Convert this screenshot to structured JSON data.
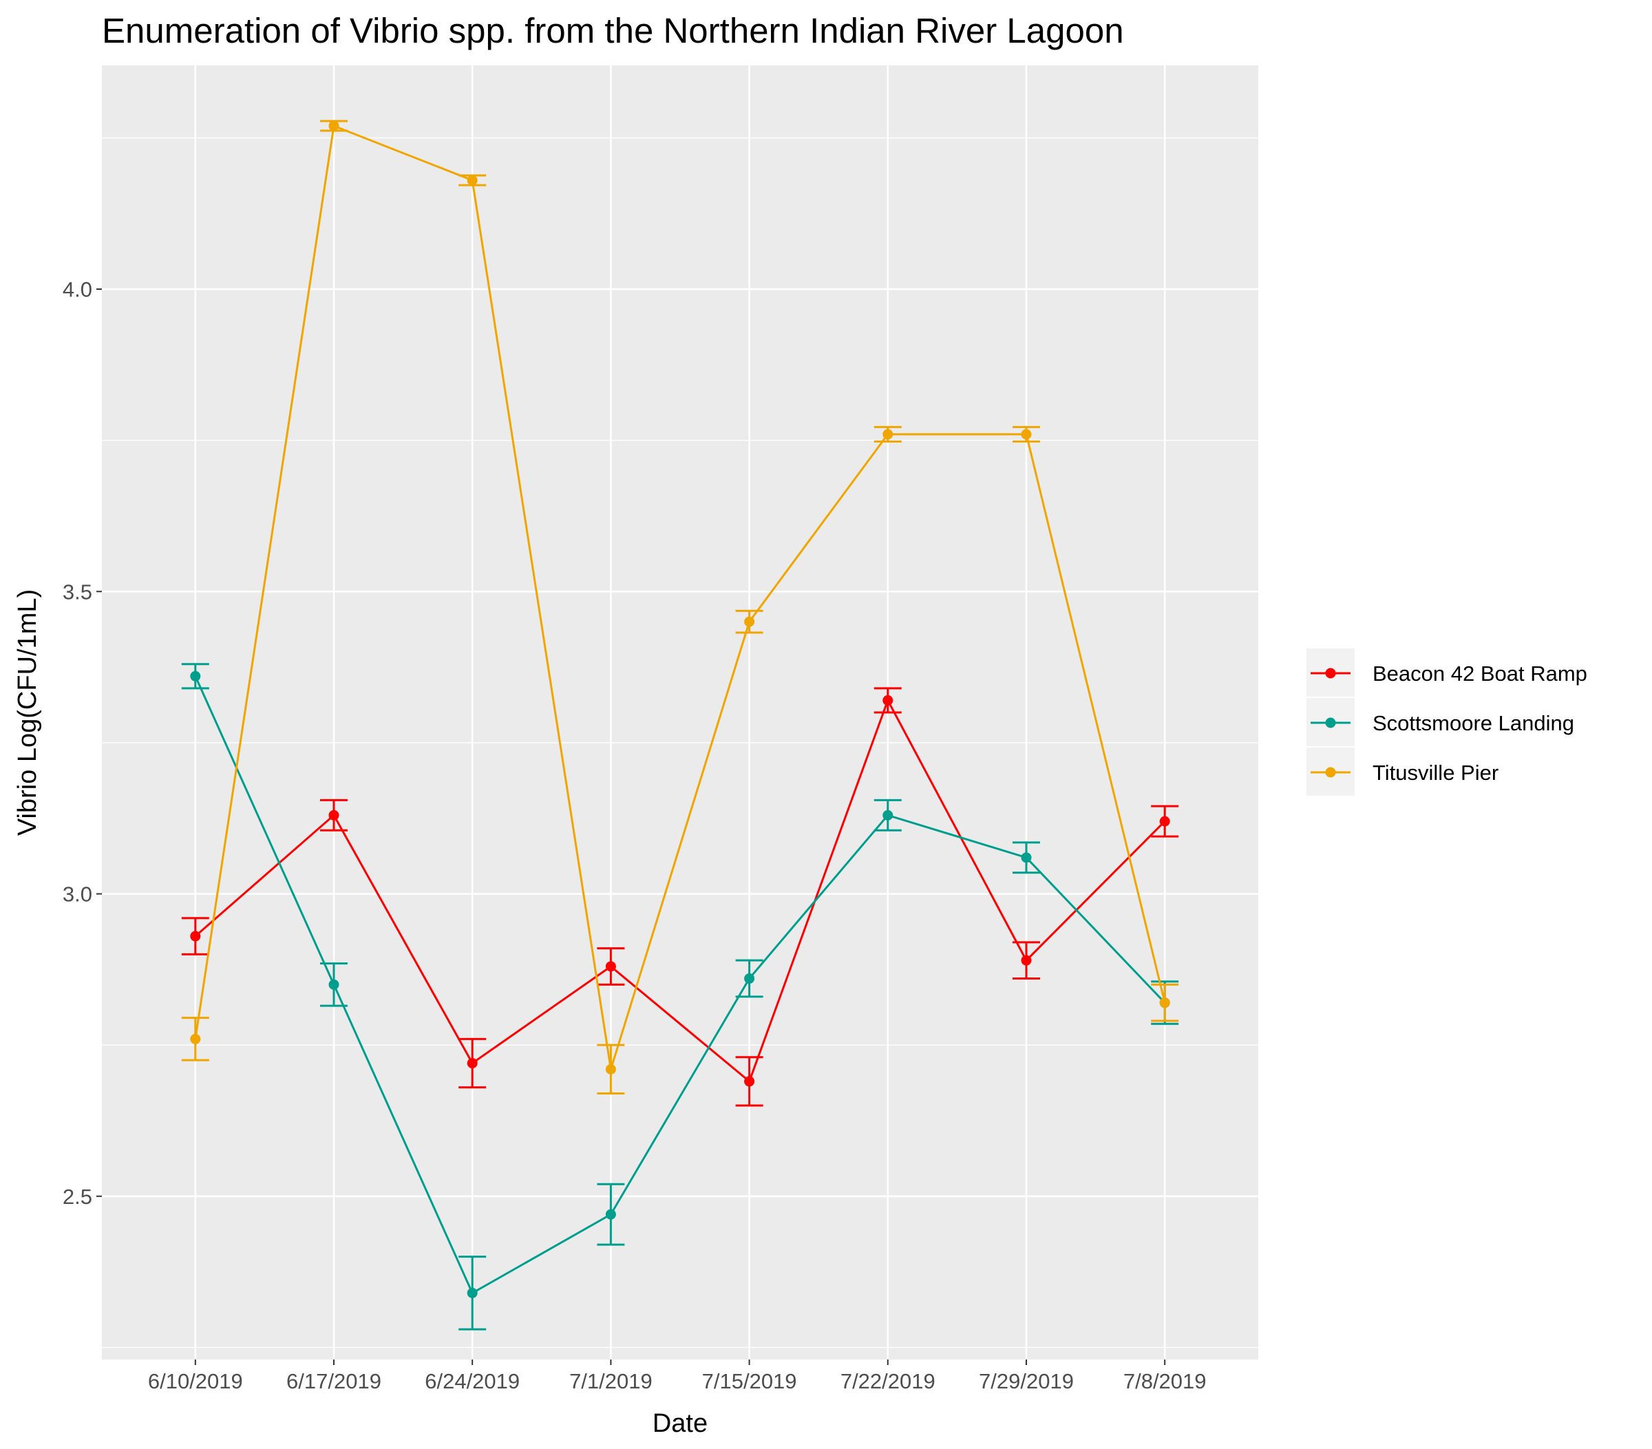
{
  "chart_data": {
    "type": "line",
    "title": "Enumeration of Vibrio spp. from the Northern Indian River Lagoon",
    "xlabel": "Date",
    "ylabel": "Vibrio Log(CFU/1mL)",
    "categories": [
      "6/10/2019",
      "6/17/2019",
      "6/24/2019",
      "7/1/2019",
      "7/15/2019",
      "7/22/2019",
      "7/29/2019",
      "7/8/2019"
    ],
    "ylim": [
      2.23,
      4.37
    ],
    "yticks": [
      2.5,
      3.0,
      3.5,
      4.0
    ],
    "ytick_labels": [
      "2.5",
      "3.0",
      "3.5",
      "4.0"
    ],
    "grid": true,
    "legend_position": "right",
    "series": [
      {
        "name": "Beacon 42 Boat Ramp",
        "color": "#ff0000",
        "values": [
          2.93,
          3.13,
          2.72,
          2.88,
          2.69,
          3.32,
          2.89,
          3.12
        ],
        "error": [
          0.03,
          0.025,
          0.04,
          0.03,
          0.04,
          0.02,
          0.03,
          0.025
        ]
      },
      {
        "name": "Scottsmoore Landing",
        "color": "#009e8c",
        "values": [
          3.36,
          2.85,
          2.34,
          2.47,
          2.86,
          3.13,
          3.06,
          2.82
        ],
        "error": [
          0.02,
          0.035,
          0.06,
          0.05,
          0.03,
          0.025,
          0.025,
          0.035
        ]
      },
      {
        "name": "Titusville Pier",
        "color": "#f0a500",
        "values": [
          2.76,
          4.27,
          4.18,
          2.71,
          3.45,
          3.76,
          3.76,
          2.82
        ],
        "error": [
          0.035,
          0.008,
          0.008,
          0.04,
          0.018,
          0.012,
          0.012,
          0.03
        ]
      }
    ]
  }
}
